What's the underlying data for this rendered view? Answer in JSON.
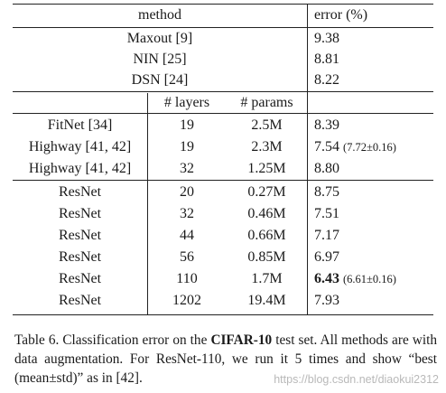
{
  "table": {
    "headers": {
      "method": "method",
      "error": "error (%)",
      "layers": "# layers",
      "params": "# params"
    },
    "group1": [
      {
        "method": "Maxout [9]",
        "error": "9.38"
      },
      {
        "method": "NIN [25]",
        "error": "8.81"
      },
      {
        "method": "DSN [24]",
        "error": "8.22"
      }
    ],
    "group2": [
      {
        "method": "FitNet [34]",
        "layers": "19",
        "params": "2.5M",
        "error": "8.39",
        "error_extra": ""
      },
      {
        "method": "Highway [41, 42]",
        "layers": "19",
        "params": "2.3M",
        "error": "7.54",
        "error_extra": "(7.72±0.16)"
      },
      {
        "method": "Highway [41, 42]",
        "layers": "32",
        "params": "1.25M",
        "error": "8.80",
        "error_extra": ""
      }
    ],
    "group3": [
      {
        "method": "ResNet",
        "layers": "20",
        "params": "0.27M",
        "error": "8.75",
        "error_extra": ""
      },
      {
        "method": "ResNet",
        "layers": "32",
        "params": "0.46M",
        "error": "7.51",
        "error_extra": ""
      },
      {
        "method": "ResNet",
        "layers": "44",
        "params": "0.66M",
        "error": "7.17",
        "error_extra": ""
      },
      {
        "method": "ResNet",
        "layers": "56",
        "params": "0.85M",
        "error": "6.97",
        "error_extra": ""
      },
      {
        "method": "ResNet",
        "layers": "110",
        "params": "1.7M",
        "error": "6.43",
        "error_extra": "(6.61±0.16)"
      },
      {
        "method": "ResNet",
        "layers": "1202",
        "params": "19.4M",
        "error": "7.93",
        "error_extra": ""
      }
    ]
  },
  "caption": {
    "prefix": "Table 6. Classification error on the ",
    "bold": "CIFAR-10",
    "suffix": " test set. All methods are with data augmentation. For ResNet-110, we run it 5 times and show “best (mean±std)” as in [42]."
  },
  "watermark": "https://blog.csdn.net/diaokui2312"
}
